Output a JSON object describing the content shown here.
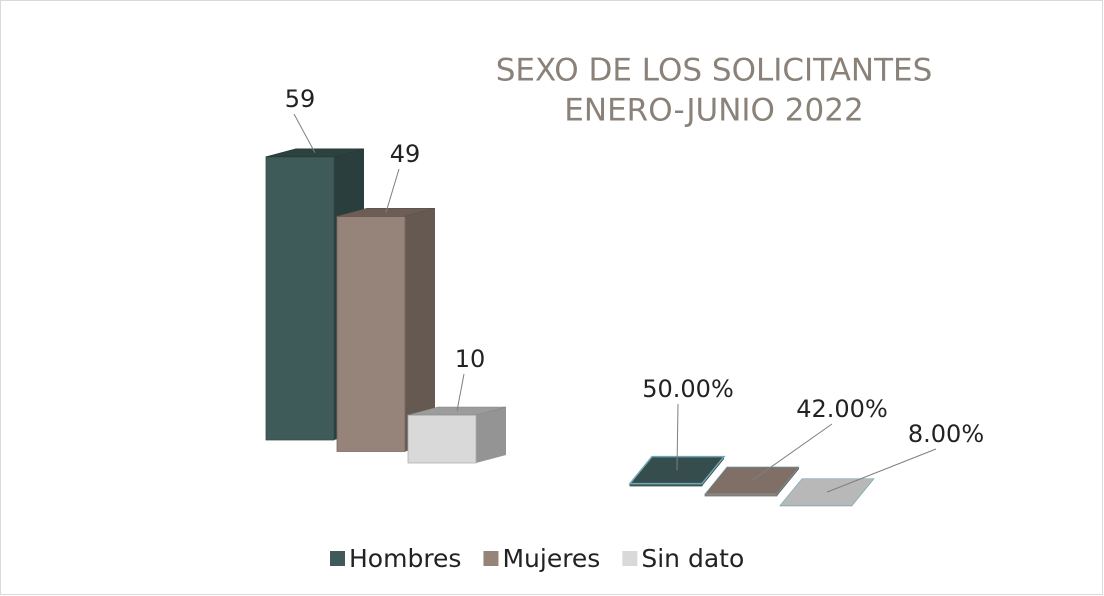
{
  "chart_data": {
    "type": "bar3d",
    "title": [
      "SEXO DE LOS SOLICITANTES",
      "ENERO-JUNIO 2022"
    ],
    "categories": [
      null,
      null
    ],
    "series": [
      {
        "name": "Hombres",
        "color": "#3e5b59",
        "values": [
          59,
          0.5
        ],
        "value_labels": [
          "59",
          "50.00%"
        ]
      },
      {
        "name": "Mujeres",
        "color": "#968379",
        "values": [
          49,
          0.42
        ],
        "value_labels": [
          "49",
          "42.00%"
        ]
      },
      {
        "name": "Sin dato",
        "color": "#d9d9d9",
        "values": [
          10,
          0.08
        ],
        "value_labels": [
          "10",
          "8.00%"
        ]
      }
    ],
    "legend": "bottom"
  }
}
